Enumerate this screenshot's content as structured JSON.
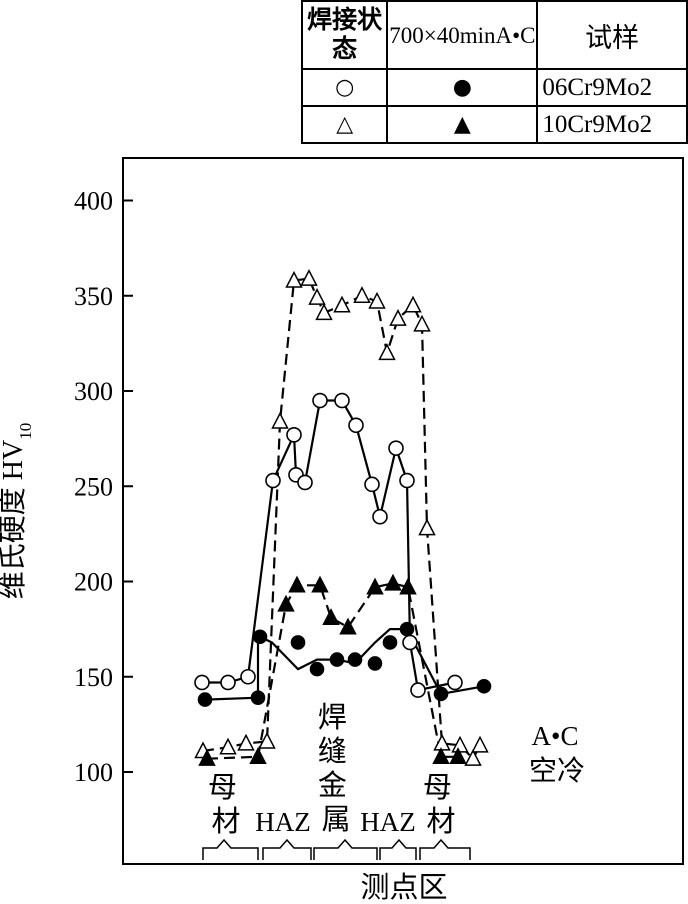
{
  "legend": {
    "header_state": "焊接状态",
    "header_treatment": "700×40minA•C",
    "header_sample": "试样",
    "rows": [
      {
        "hollow_symbol": "○",
        "filled_symbol": "●",
        "sample": "06Cr9Mo2"
      },
      {
        "hollow_symbol": "△",
        "filled_symbol": "▲",
        "sample": "10Cr9Mo2"
      }
    ]
  },
  "chart_data": {
    "type": "line",
    "xlabel": "测点区",
    "ylabel": "维氏硬度 HV",
    "ylabel_subscript": "10",
    "ylim": [
      88,
      418
    ],
    "yticks": [
      100,
      150,
      200,
      250,
      300,
      350,
      400
    ],
    "legend_position": "top-right",
    "grid": false,
    "x": [
      1,
      2,
      3,
      4,
      5,
      6,
      7,
      8,
      9,
      10,
      11,
      12,
      13,
      14,
      15,
      16,
      17,
      18,
      19,
      20,
      21
    ],
    "series": [
      {
        "name": "06Cr9Mo2 A•C",
        "marker": "circle-open",
        "line": "solid",
        "values": [
          147,
          147,
          150,
          253,
          277,
          256,
          252,
          295,
          295,
          282,
          251,
          234,
          270,
          253,
          168,
          143,
          147,
          null,
          null,
          null,
          null
        ]
      },
      {
        "name": "06Cr9Mo2 700×40minA•C",
        "marker": "circle-filled",
        "line": "solid",
        "values": [
          138,
          null,
          null,
          171,
          139,
          168,
          154,
          159,
          159,
          157,
          168,
          175,
          141,
          145,
          null,
          null,
          null,
          null,
          null,
          null,
          null
        ]
      },
      {
        "name": "10Cr9Mo2 A•C",
        "marker": "triangle-open",
        "line": "dashed",
        "values": [
          111,
          113,
          115,
          116,
          284,
          358,
          359,
          349,
          341,
          345,
          350,
          347,
          320,
          338,
          345,
          335,
          228,
          115,
          114,
          107,
          114
        ]
      },
      {
        "name": "10Cr9Mo2 700×40minA•C",
        "marker": "triangle-filled",
        "line": "dashed",
        "values": [
          107,
          108,
          188,
          198,
          198,
          181,
          176,
          197,
          199,
          197,
          108,
          108,
          null,
          null,
          null,
          null,
          null,
          null,
          null,
          null,
          null
        ]
      }
    ],
    "annotations": {
      "base_metal": "母材",
      "haz": "HAZ",
      "weld_metal": "焊缝金属",
      "cooling_line1": "A•C",
      "cooling_line2": "空冷"
    }
  }
}
